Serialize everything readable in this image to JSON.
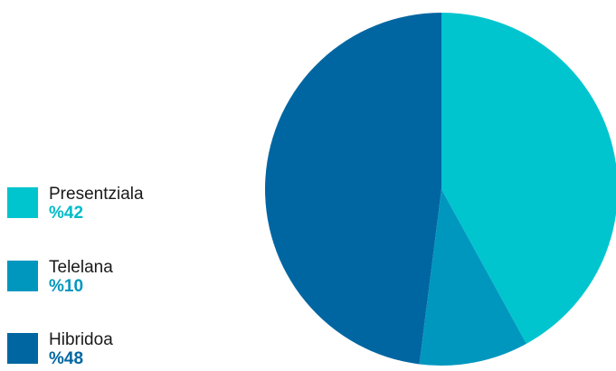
{
  "chart_data": {
    "type": "pie",
    "title": "",
    "start_angle_deg": 0,
    "direction": "clockwise",
    "slices": [
      {
        "label": "Presentziala",
        "value": 42,
        "value_label": "%42",
        "color": "#00c5cf",
        "pct_color": "#00bcc8"
      },
      {
        "label": "Telelana",
        "value": 10,
        "value_label": "%10",
        "color": "#0097bf",
        "pct_color": "#0097bf"
      },
      {
        "label": "Hibridoa",
        "value": 48,
        "value_label": "%48",
        "color": "#0066a1",
        "pct_color": "#0066a1"
      }
    ],
    "legend": {
      "position": "left"
    }
  }
}
